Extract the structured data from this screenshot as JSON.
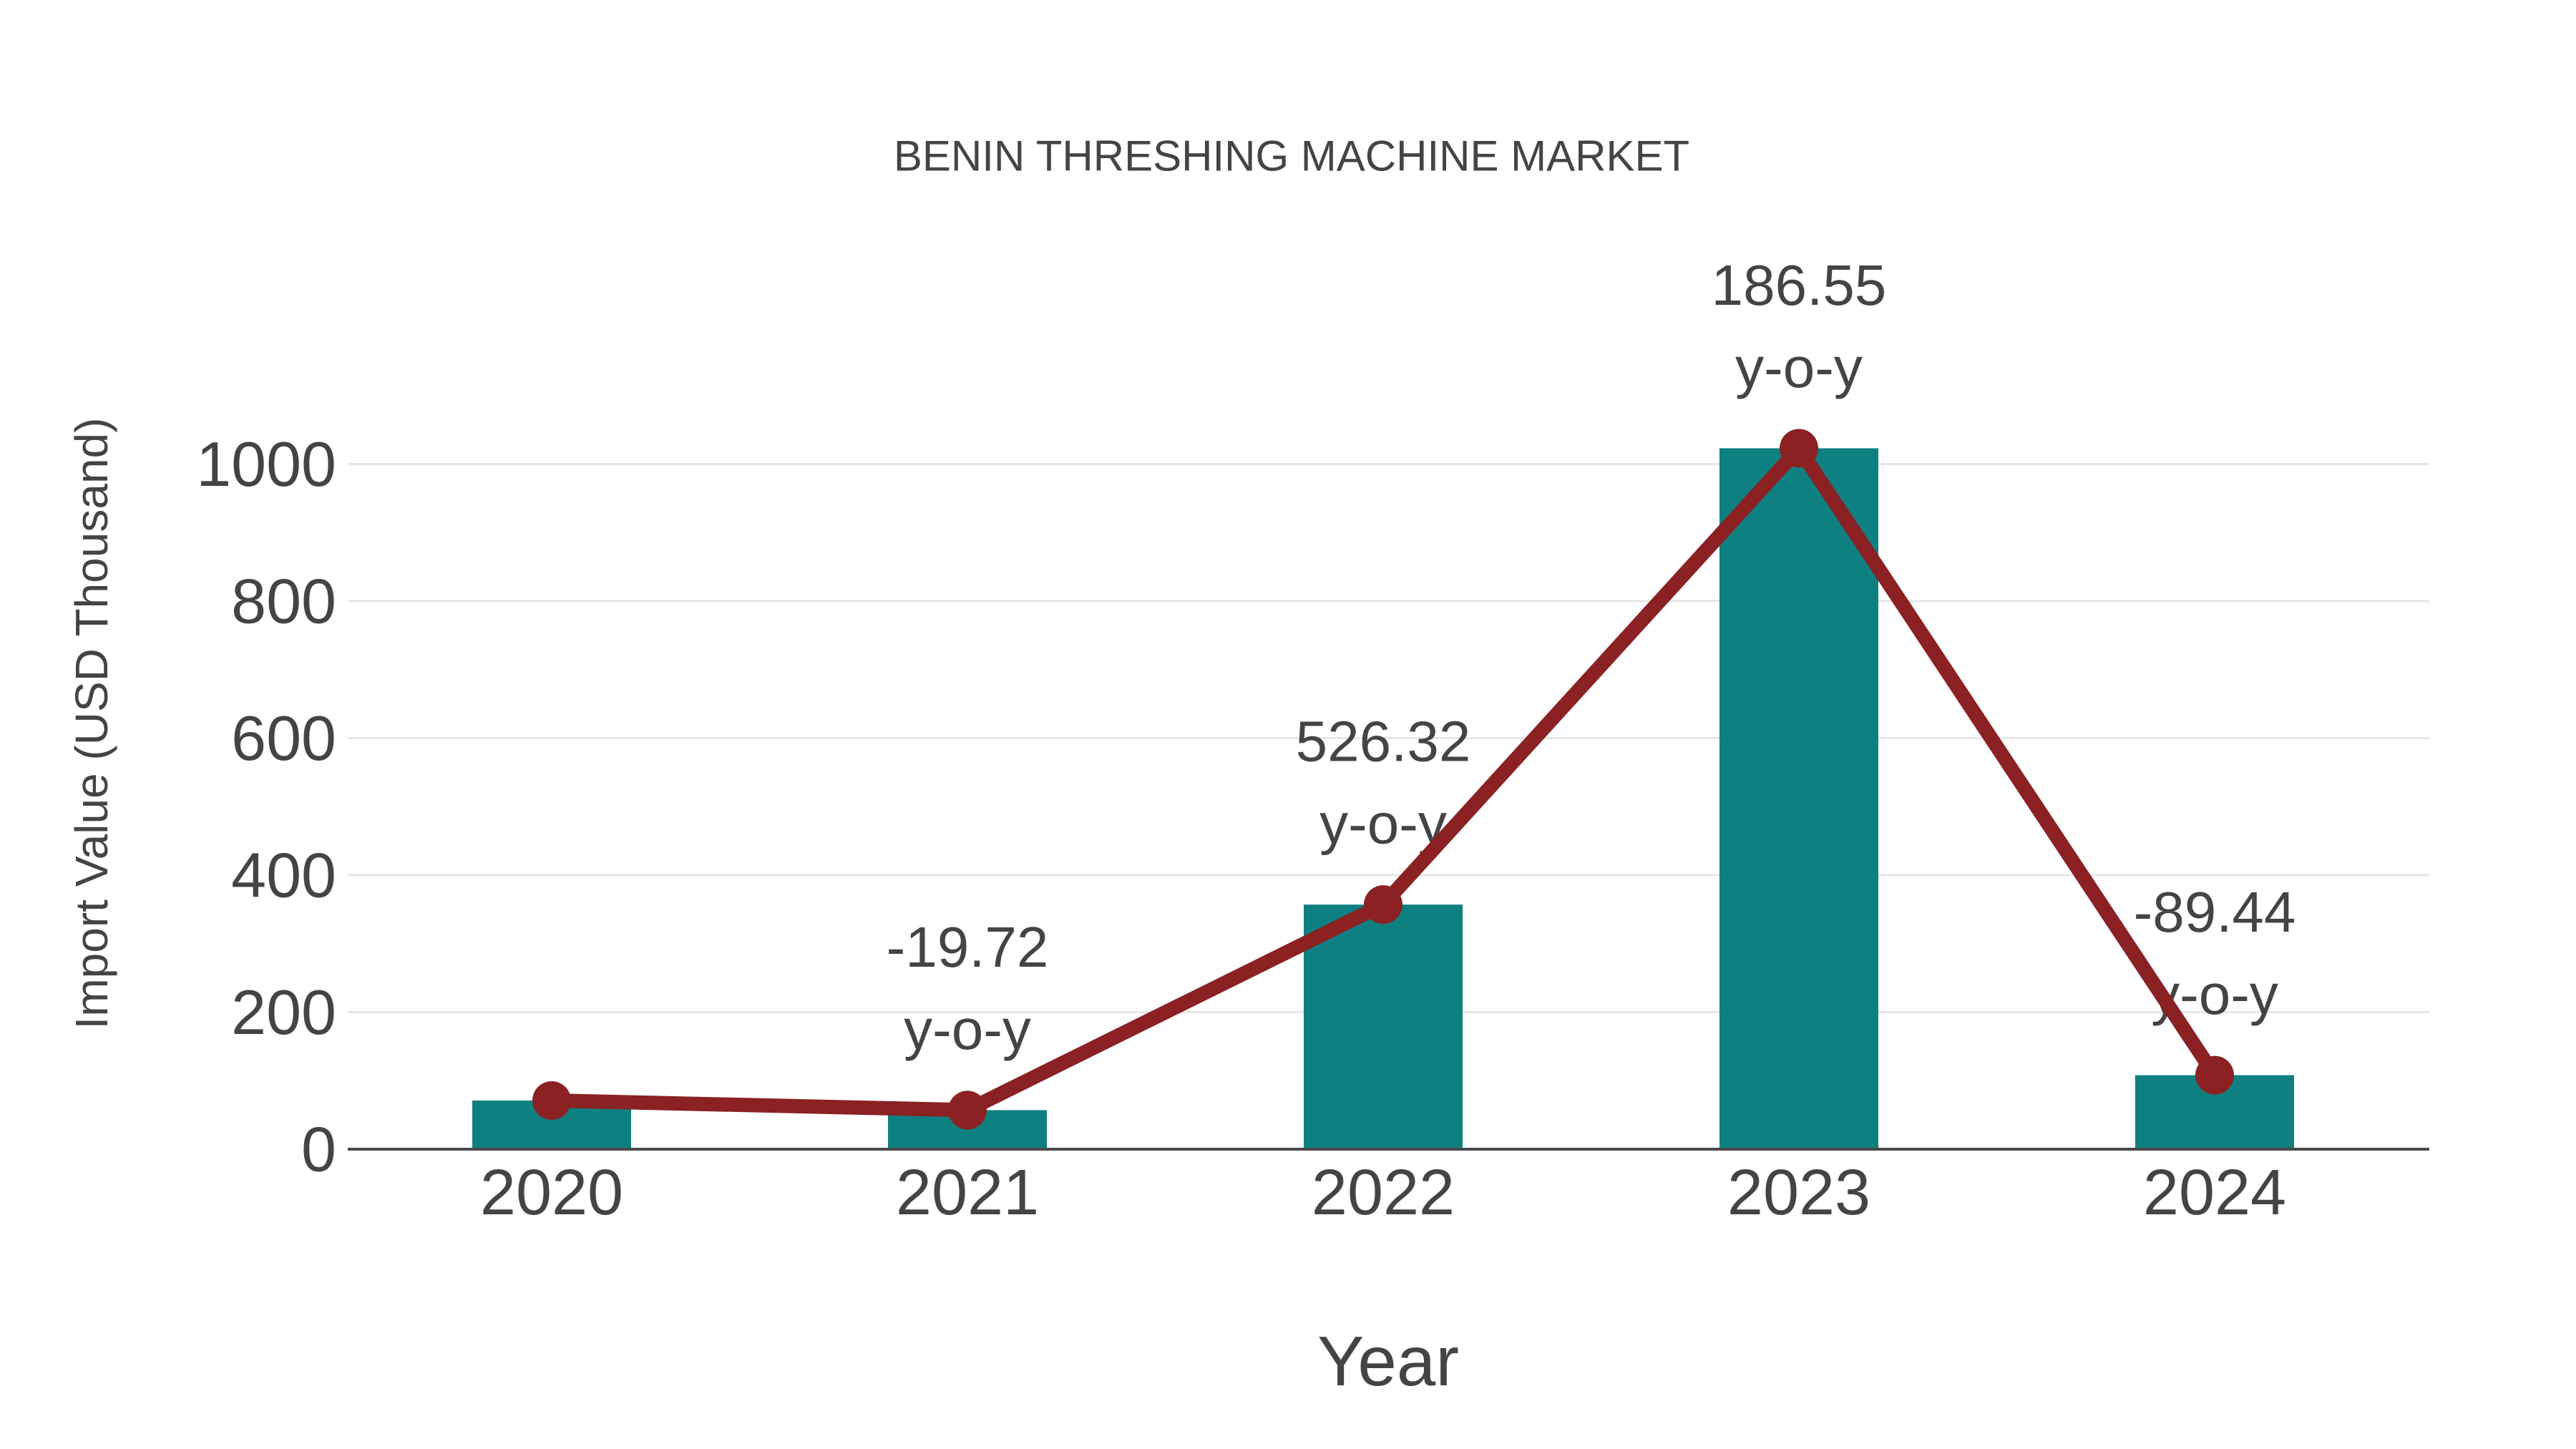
{
  "chart_data": {
    "type": "bar",
    "title": "BENIN THRESHING MACHINE MARKET",
    "xlabel": "Year",
    "ylabel": "Import Value (USD Thousand)",
    "categories": [
      "2020",
      "2021",
      "2022",
      "2023",
      "2024"
    ],
    "series": [
      {
        "role": "bars",
        "values": [
          71,
          57,
          357,
          1023,
          108
        ],
        "color": "#0e8081"
      },
      {
        "role": "line",
        "values": [
          71,
          57,
          357,
          1023,
          108
        ],
        "color": "#8b2123",
        "marker": "circle"
      }
    ],
    "annotations": [
      {
        "category": "2021",
        "line1": "-19.72",
        "line2": "y-o-y"
      },
      {
        "category": "2022",
        "line1": "526.32",
        "line2": "y-o-y"
      },
      {
        "category": "2023",
        "line1": "186.55",
        "line2": "y-o-y"
      },
      {
        "category": "2024",
        "line1": "-89.44",
        "line2": "y-o-y"
      }
    ],
    "yticks": [
      0,
      200,
      400,
      600,
      800,
      1000
    ],
    "ylim": [
      0,
      1100
    ],
    "grid": true,
    "legend": "none",
    "background": "#ffffff",
    "colors": {
      "bar": "#0e8081",
      "line": "#8b2123",
      "text": "#444444",
      "grid": "#e7e7e7",
      "axis": "#4a4a4a"
    }
  }
}
